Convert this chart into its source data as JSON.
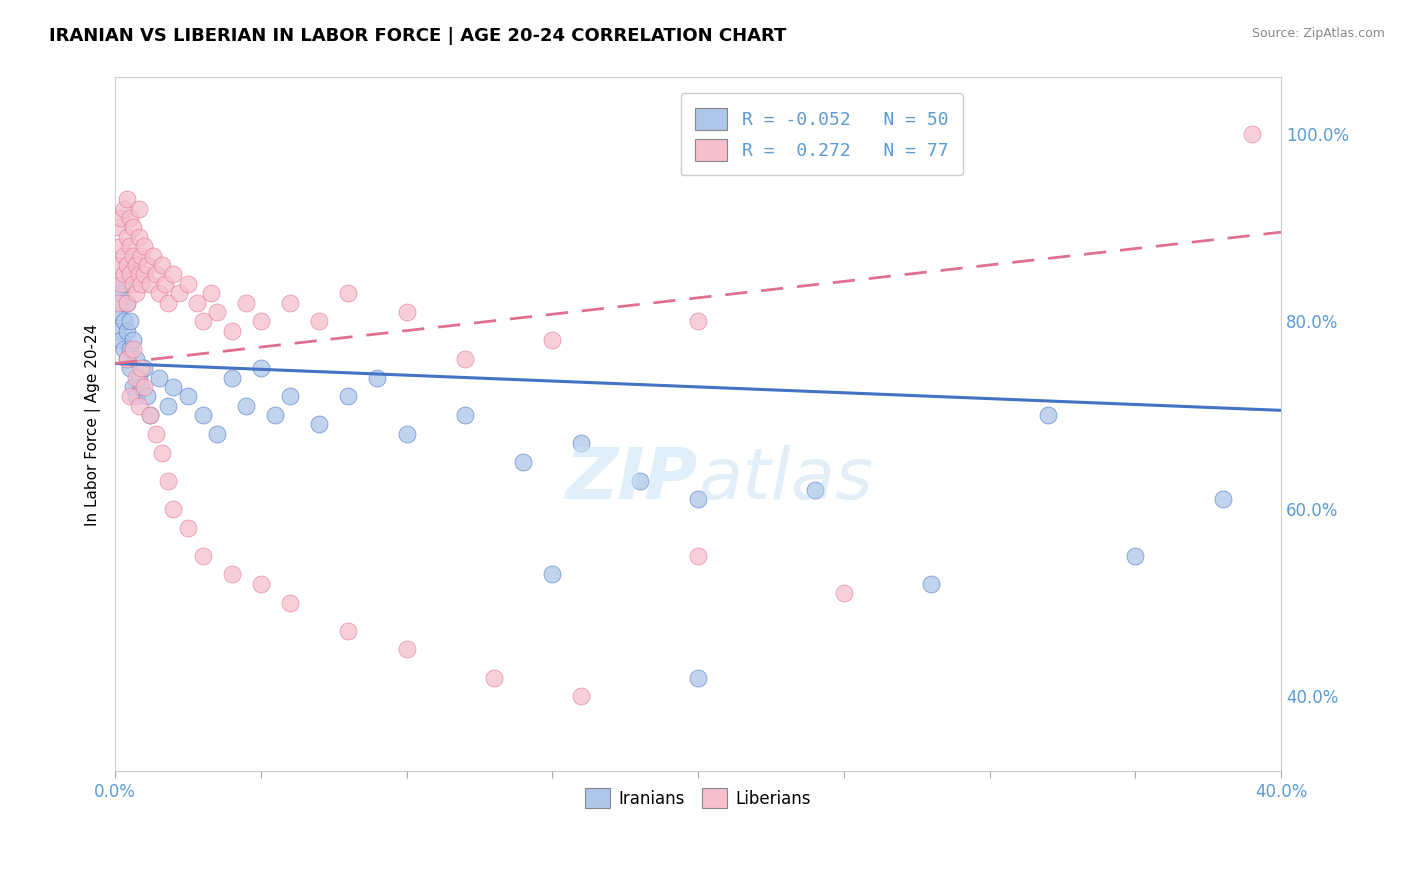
{
  "title": "IRANIAN VS LIBERIAN IN LABOR FORCE | AGE 20-24 CORRELATION CHART",
  "source": "Source: ZipAtlas.com",
  "ylabel": "In Labor Force | Age 20-24",
  "right_yticks": [
    40.0,
    60.0,
    80.0,
    100.0
  ],
  "xmin": 0.0,
  "xmax": 0.4,
  "ymin": 0.32,
  "ymax": 1.06,
  "iranian_R": -0.052,
  "iranian_N": 50,
  "liberian_R": 0.272,
  "liberian_N": 77,
  "iranian_color": "#aec6e8",
  "liberian_color": "#f5bfcd",
  "iranian_line_color": "#4472c4",
  "liberian_line_color": "#e07090",
  "watermark_color": "#cce5f5",
  "iranian_points_x": [
    0.001,
    0.001,
    0.002,
    0.002,
    0.002,
    0.003,
    0.003,
    0.003,
    0.004,
    0.004,
    0.004,
    0.005,
    0.005,
    0.005,
    0.006,
    0.006,
    0.007,
    0.007,
    0.008,
    0.009,
    0.01,
    0.011,
    0.012,
    0.015,
    0.018,
    0.02,
    0.025,
    0.03,
    0.035,
    0.04,
    0.045,
    0.05,
    0.055,
    0.06,
    0.07,
    0.08,
    0.09,
    0.1,
    0.12,
    0.14,
    0.16,
    0.18,
    0.2,
    0.24,
    0.28,
    0.35,
    0.38,
    0.2,
    0.15,
    0.32
  ],
  "iranian_points_y": [
    0.81,
    0.79,
    0.82,
    0.78,
    0.83,
    0.8,
    0.77,
    0.84,
    0.79,
    0.76,
    0.82,
    0.8,
    0.77,
    0.75,
    0.78,
    0.73,
    0.76,
    0.72,
    0.74,
    0.73,
    0.75,
    0.72,
    0.7,
    0.74,
    0.71,
    0.73,
    0.72,
    0.7,
    0.68,
    0.74,
    0.71,
    0.75,
    0.7,
    0.72,
    0.69,
    0.72,
    0.74,
    0.68,
    0.7,
    0.65,
    0.67,
    0.63,
    0.61,
    0.62,
    0.52,
    0.55,
    0.61,
    0.42,
    0.53,
    0.7
  ],
  "liberian_points_x": [
    0.001,
    0.001,
    0.001,
    0.002,
    0.002,
    0.002,
    0.003,
    0.003,
    0.003,
    0.004,
    0.004,
    0.004,
    0.004,
    0.005,
    0.005,
    0.005,
    0.006,
    0.006,
    0.006,
    0.007,
    0.007,
    0.008,
    0.008,
    0.008,
    0.009,
    0.009,
    0.01,
    0.01,
    0.011,
    0.012,
    0.013,
    0.014,
    0.015,
    0.016,
    0.017,
    0.018,
    0.02,
    0.022,
    0.025,
    0.028,
    0.03,
    0.033,
    0.035,
    0.04,
    0.045,
    0.05,
    0.06,
    0.07,
    0.08,
    0.1,
    0.12,
    0.15,
    0.2,
    0.004,
    0.005,
    0.006,
    0.007,
    0.008,
    0.009,
    0.01,
    0.012,
    0.014,
    0.016,
    0.018,
    0.02,
    0.025,
    0.03,
    0.04,
    0.05,
    0.06,
    0.08,
    0.1,
    0.13,
    0.16,
    0.2,
    0.25,
    0.39
  ],
  "liberian_points_y": [
    0.82,
    0.86,
    0.9,
    0.88,
    0.91,
    0.84,
    0.87,
    0.92,
    0.85,
    0.89,
    0.86,
    0.82,
    0.93,
    0.88,
    0.85,
    0.91,
    0.87,
    0.84,
    0.9,
    0.86,
    0.83,
    0.89,
    0.85,
    0.92,
    0.87,
    0.84,
    0.88,
    0.85,
    0.86,
    0.84,
    0.87,
    0.85,
    0.83,
    0.86,
    0.84,
    0.82,
    0.85,
    0.83,
    0.84,
    0.82,
    0.8,
    0.83,
    0.81,
    0.79,
    0.82,
    0.8,
    0.82,
    0.8,
    0.83,
    0.81,
    0.76,
    0.78,
    0.8,
    0.76,
    0.72,
    0.77,
    0.74,
    0.71,
    0.75,
    0.73,
    0.7,
    0.68,
    0.66,
    0.63,
    0.6,
    0.58,
    0.55,
    0.53,
    0.52,
    0.5,
    0.47,
    0.45,
    0.42,
    0.4,
    0.55,
    0.51,
    1.0
  ]
}
